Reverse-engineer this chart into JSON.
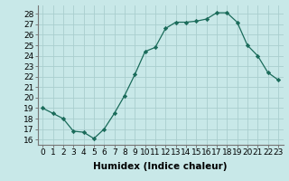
{
  "x": [
    0,
    1,
    2,
    3,
    4,
    5,
    6,
    7,
    8,
    9,
    10,
    11,
    12,
    13,
    14,
    15,
    16,
    17,
    18,
    19,
    20,
    21,
    22,
    23
  ],
  "y": [
    19.0,
    18.5,
    18.0,
    16.8,
    16.7,
    16.1,
    17.0,
    18.5,
    20.2,
    22.2,
    24.4,
    24.8,
    26.6,
    27.2,
    27.2,
    27.3,
    27.5,
    28.1,
    28.1,
    27.2,
    25.0,
    24.0,
    22.4,
    21.7
  ],
  "line_color": "#1a6b5a",
  "marker": "D",
  "marker_size": 2.2,
  "bg_color": "#c8e8e8",
  "grid_color": "#aacece",
  "xlabel": "Humidex (Indice chaleur)",
  "xlim": [
    -0.5,
    23.5
  ],
  "ylim": [
    15.5,
    28.8
  ],
  "yticks": [
    16,
    17,
    18,
    19,
    20,
    21,
    22,
    23,
    24,
    25,
    26,
    27,
    28
  ],
  "xticks": [
    0,
    1,
    2,
    3,
    4,
    5,
    6,
    7,
    8,
    9,
    10,
    11,
    12,
    13,
    14,
    15,
    16,
    17,
    18,
    19,
    20,
    21,
    22,
    23
  ],
  "xtick_labels": [
    "0",
    "1",
    "2",
    "3",
    "4",
    "5",
    "6",
    "7",
    "8",
    "9",
    "10",
    "11",
    "12",
    "13",
    "14",
    "15",
    "16",
    "17",
    "18",
    "19",
    "20",
    "21",
    "22",
    "23"
  ],
  "tick_fontsize": 6.5,
  "xlabel_fontsize": 7.5
}
